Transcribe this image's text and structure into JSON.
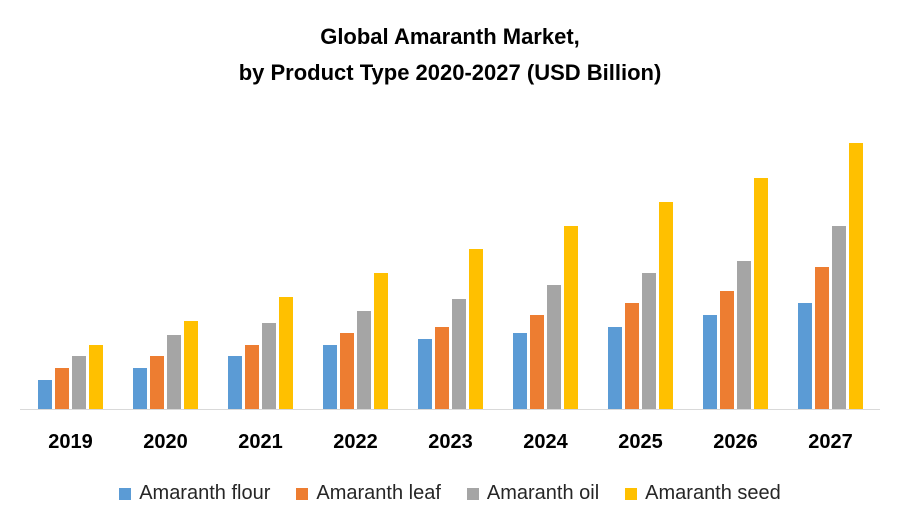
{
  "chart_data": {
    "type": "bar",
    "title": "Global Amaranth Market,",
    "subtitle": "by Product Type 2020-2027 (USD Billion)",
    "xlabel": "",
    "ylabel": "",
    "value_note": "no y-axis shown; values are relative estimates",
    "ylim": [
      0,
      28
    ],
    "grid": false,
    "legend_position": "bottom",
    "categories": [
      "2019",
      "2020",
      "2021",
      "2022",
      "2023",
      "2024",
      "2025",
      "2026",
      "2027"
    ],
    "series": [
      {
        "name": "Amaranth flour",
        "color": "#5B9BD5",
        "values": [
          2.9,
          4.1,
          5.3,
          6.4,
          7.0,
          7.6,
          8.2,
          9.4,
          10.6
        ]
      },
      {
        "name": "Amaranth leaf",
        "color": "#ED7D31",
        "values": [
          4.1,
          5.3,
          6.4,
          7.6,
          8.2,
          9.4,
          10.6,
          11.8,
          14.2
        ]
      },
      {
        "name": "Amaranth oil",
        "color": "#A5A5A5",
        "values": [
          5.3,
          7.4,
          8.6,
          9.8,
          11.0,
          12.4,
          13.6,
          14.8,
          18.3
        ]
      },
      {
        "name": "Amaranth seed",
        "color": "#FFC000",
        "values": [
          6.4,
          8.8,
          11.2,
          13.6,
          16.0,
          18.3,
          20.7,
          23.1,
          26.6
        ]
      }
    ]
  }
}
